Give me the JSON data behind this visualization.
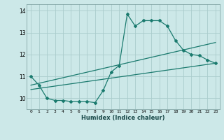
{
  "xlabel": "Humidex (Indice chaleur)",
  "bg_color": "#cce8e8",
  "line_color": "#1a7a6e",
  "grid_color": "#aacccc",
  "xlim": [
    -0.5,
    23.5
  ],
  "ylim": [
    9.5,
    14.3
  ],
  "yticks": [
    10,
    11,
    12,
    13,
    14
  ],
  "xticks": [
    0,
    1,
    2,
    3,
    4,
    5,
    6,
    7,
    8,
    9,
    10,
    11,
    12,
    13,
    14,
    15,
    16,
    17,
    18,
    19,
    20,
    21,
    22,
    23
  ],
  "line1_x": [
    0,
    1,
    2,
    3,
    4,
    5,
    6,
    7,
    8,
    9,
    10,
    11,
    12,
    13,
    14,
    15,
    16,
    17,
    18,
    19,
    20,
    21,
    22,
    23
  ],
  "line1_y": [
    11.0,
    10.6,
    10.0,
    9.9,
    9.9,
    9.85,
    9.85,
    9.85,
    9.8,
    10.35,
    11.2,
    11.5,
    13.85,
    13.3,
    13.55,
    13.55,
    13.55,
    13.3,
    12.65,
    12.2,
    12.0,
    11.95,
    11.75,
    11.6
  ],
  "line2_x": [
    0,
    23
  ],
  "line2_y": [
    10.6,
    12.55
  ],
  "line3_x": [
    0,
    23
  ],
  "line3_y": [
    10.4,
    11.6
  ]
}
